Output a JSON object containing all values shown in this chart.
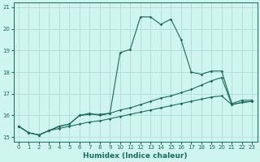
{
  "xlabel": "Humidex (Indice chaleur)",
  "background_color": "#cff5ef",
  "grid_color": "#b0ddd5",
  "line_color": "#1a6b5a",
  "xlim": [
    -0.5,
    23.5
  ],
  "ylim": [
    14.8,
    21.2
  ],
  "yticks": [
    15,
    16,
    17,
    18,
    19,
    20,
    21
  ],
  "xticks": [
    0,
    1,
    2,
    3,
    4,
    5,
    6,
    7,
    8,
    9,
    10,
    11,
    12,
    13,
    14,
    15,
    16,
    17,
    18,
    19,
    20,
    21,
    22,
    23
  ],
  "line1_x": [
    0,
    1,
    2,
    3,
    4,
    5,
    6,
    7,
    8,
    9,
    10,
    11,
    12,
    13,
    14,
    15,
    16,
    17,
    18,
    19,
    20,
    21,
    22,
    23
  ],
  "line1_y": [
    15.5,
    15.2,
    15.1,
    15.3,
    15.4,
    15.5,
    15.6,
    15.7,
    15.75,
    15.85,
    15.95,
    16.05,
    16.15,
    16.25,
    16.35,
    16.45,
    16.55,
    16.65,
    16.75,
    16.85,
    16.9,
    16.5,
    16.6,
    16.65
  ],
  "line2_x": [
    0,
    1,
    2,
    3,
    4,
    5,
    6,
    7,
    8,
    9,
    10,
    11,
    12,
    13,
    14,
    15,
    16,
    17,
    18,
    19,
    20,
    21,
    22,
    23
  ],
  "line2_y": [
    15.5,
    15.2,
    15.1,
    15.3,
    15.5,
    15.6,
    16.0,
    16.05,
    16.05,
    16.1,
    16.25,
    16.35,
    16.5,
    16.65,
    16.8,
    16.9,
    17.05,
    17.2,
    17.4,
    17.6,
    17.75,
    16.5,
    16.6,
    16.65
  ],
  "line3_x": [
    0,
    1,
    2,
    3,
    4,
    5,
    6,
    7,
    8,
    9,
    10,
    11,
    12,
    13,
    14,
    15,
    16,
    17,
    18,
    19,
    20,
    21,
    22,
    23
  ],
  "line3_y": [
    15.5,
    15.2,
    15.1,
    15.3,
    15.5,
    15.6,
    16.0,
    16.1,
    16.0,
    16.1,
    18.9,
    19.05,
    20.55,
    20.55,
    20.2,
    20.45,
    19.5,
    18.0,
    17.9,
    18.05,
    18.05,
    16.55,
    16.7,
    16.7
  ]
}
